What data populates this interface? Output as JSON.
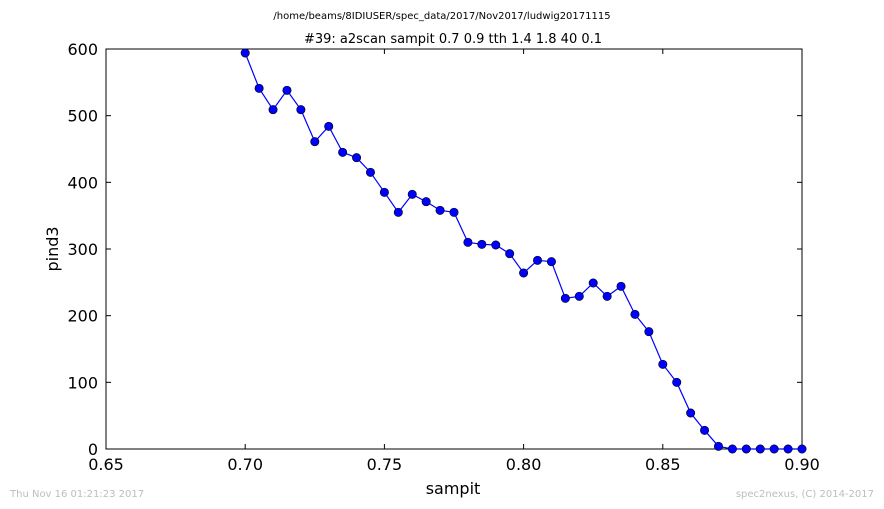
{
  "footer": {
    "timestamp": "Thu Nov 16 01:21:23 2017",
    "credit": "spec2nexus, (C) 2014-2017"
  },
  "chart_data": {
    "type": "line",
    "suptitle": "/home/beams/8IDIUSER/spec_data/2017/Nov2017/ludwig20171115",
    "title": "#39: a2scan  sampit 0.7 0.9  tth 1.4 1.8  40 0.1",
    "xlabel": "sampit",
    "ylabel": "pind3",
    "xlim": [
      0.65,
      0.9
    ],
    "ylim": [
      0,
      600
    ],
    "xticks": [
      "0.65",
      "0.70",
      "0.75",
      "0.80",
      "0.85",
      "0.90"
    ],
    "yticks": [
      "0",
      "100",
      "200",
      "300",
      "400",
      "500",
      "600"
    ],
    "grid": false,
    "color": "#0000ff",
    "series": [
      {
        "x": [
          0.7,
          0.705,
          0.71,
          0.715,
          0.72,
          0.725,
          0.73,
          0.735,
          0.74,
          0.745,
          0.75,
          0.755,
          0.76,
          0.765,
          0.77,
          0.775,
          0.78,
          0.785,
          0.79,
          0.795,
          0.8,
          0.805,
          0.81,
          0.815,
          0.82,
          0.825,
          0.83,
          0.835,
          0.84,
          0.845,
          0.85,
          0.855,
          0.86,
          0.865,
          0.87,
          0.875,
          0.88,
          0.885,
          0.89,
          0.895,
          0.9
        ],
        "y": [
          594,
          541,
          509,
          538,
          509,
          461,
          484,
          445,
          437,
          415,
          385,
          355,
          382,
          371,
          358,
          355,
          310,
          307,
          306,
          293,
          264,
          283,
          281,
          226,
          229,
          249,
          229,
          244,
          202,
          176,
          127,
          100,
          54,
          28,
          4,
          0,
          0,
          0,
          0,
          0,
          0
        ]
      }
    ]
  }
}
